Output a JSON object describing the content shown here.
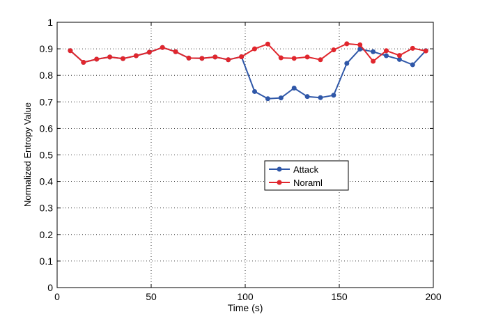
{
  "chart_data": {
    "type": "line",
    "xlabel": "Time (s)",
    "ylabel": "Normalized Entropy Value",
    "xlim": [
      0,
      200
    ],
    "ylim": [
      0,
      1
    ],
    "xticks": [
      0,
      50,
      100,
      150,
      200
    ],
    "yticks": [
      0,
      0.1,
      0.2,
      0.3,
      0.4,
      0.5,
      0.6,
      0.7,
      0.8,
      0.9,
      1
    ],
    "grid": "on (dotted)",
    "legend_position": "center-right",
    "series": [
      {
        "name": "Attack",
        "color": "#2f57a8",
        "x": [
          7,
          14,
          21,
          28,
          35,
          42,
          49,
          56,
          63,
          70,
          77,
          84,
          91,
          98,
          105,
          112,
          119,
          126,
          133,
          140,
          147,
          154,
          161,
          168,
          175,
          182,
          189,
          196
        ],
        "values": [
          0.893,
          0.849,
          0.861,
          0.869,
          0.863,
          0.874,
          0.887,
          0.905,
          0.889,
          0.865,
          0.864,
          0.869,
          0.859,
          0.87,
          0.739,
          0.712,
          0.715,
          0.752,
          0.72,
          0.716,
          0.725,
          0.845,
          0.899,
          0.889,
          0.874,
          0.86,
          0.84,
          0.893
        ]
      },
      {
        "name": "Noraml",
        "color": "#e0262d",
        "x": [
          7,
          14,
          21,
          28,
          35,
          42,
          49,
          56,
          63,
          70,
          77,
          84,
          91,
          98,
          105,
          112,
          119,
          126,
          133,
          140,
          147,
          154,
          161,
          168,
          175,
          182,
          189,
          196
        ],
        "values": [
          0.893,
          0.849,
          0.861,
          0.869,
          0.863,
          0.874,
          0.887,
          0.905,
          0.889,
          0.865,
          0.864,
          0.869,
          0.859,
          0.87,
          0.9,
          0.918,
          0.866,
          0.864,
          0.869,
          0.859,
          0.896,
          0.919,
          0.915,
          0.853,
          0.893,
          0.875,
          0.902,
          0.892
        ]
      }
    ]
  }
}
